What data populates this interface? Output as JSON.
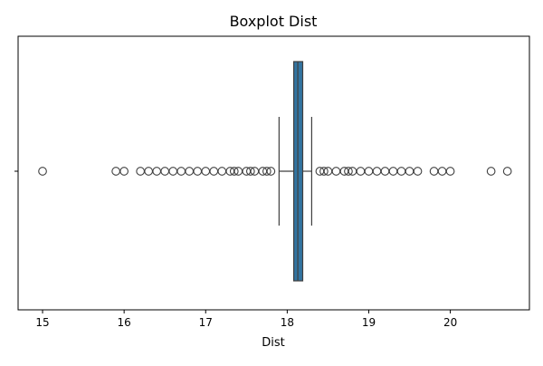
{
  "chart_data": {
    "type": "boxplot",
    "title": "Boxplot Dist",
    "xlabel": "Dist",
    "ylabel": "",
    "orientation": "horizontal",
    "xlim": [
      14.7,
      20.97
    ],
    "x_ticks": [
      15,
      16,
      17,
      18,
      19,
      20
    ],
    "y_tick_labels": [
      ""
    ],
    "grid": false,
    "colors": {
      "box_fill": "#3274a1",
      "lines": "#3f3f3f",
      "outlier_edge": "#3f3f3f",
      "axes": "#000000"
    },
    "series": [
      {
        "q1": 18.08,
        "median": 18.13,
        "q3": 18.19,
        "whisker_low": 17.9,
        "whisker_high": 18.3,
        "outliers": [
          15.0,
          15.9,
          16.0,
          16.2,
          16.3,
          16.4,
          16.5,
          16.6,
          16.7,
          16.8,
          16.9,
          17.0,
          17.1,
          17.2,
          17.3,
          17.35,
          17.4,
          17.5,
          17.55,
          17.6,
          17.7,
          17.75,
          17.8,
          18.4,
          18.45,
          18.5,
          18.6,
          18.7,
          18.75,
          18.8,
          18.9,
          19.0,
          19.1,
          19.2,
          19.3,
          19.4,
          19.5,
          19.6,
          19.8,
          19.9,
          20.0,
          20.5,
          20.7
        ]
      }
    ]
  }
}
